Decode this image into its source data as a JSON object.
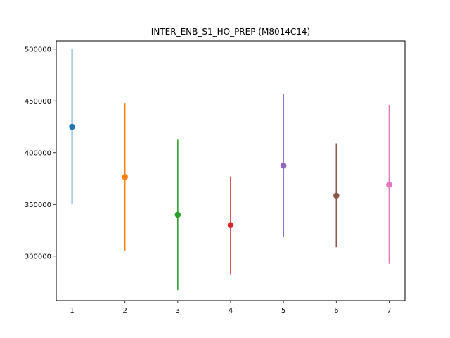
{
  "chart_data": {
    "type": "scatter",
    "title": "INTER_ENB_S1_HO_PREP (M8014C14)",
    "xlabel": "",
    "ylabel": "",
    "xlim": [
      0.7,
      7.3
    ],
    "ylim": [
      257000,
      508000
    ],
    "xticks": [
      1,
      2,
      3,
      4,
      5,
      6,
      7
    ],
    "yticks": [
      300000,
      350000,
      400000,
      450000,
      500000
    ],
    "grid": false,
    "points": [
      {
        "x": 1,
        "y": 425000,
        "low": 350000,
        "high": 500000,
        "color": "#1f77b4"
      },
      {
        "x": 2,
        "y": 376500,
        "low": 305500,
        "high": 448000,
        "color": "#ff7f0e"
      },
      {
        "x": 3,
        "y": 340000,
        "low": 267000,
        "high": 412500,
        "color": "#2ca02c"
      },
      {
        "x": 4,
        "y": 330000,
        "low": 282500,
        "high": 377000,
        "color": "#d62728"
      },
      {
        "x": 5,
        "y": 387500,
        "low": 318500,
        "high": 457000,
        "color": "#9467bd"
      },
      {
        "x": 6,
        "y": 358500,
        "low": 308500,
        "high": 409000,
        "color": "#8c564b"
      },
      {
        "x": 7,
        "y": 369000,
        "low": 292500,
        "high": 446000,
        "color": "#e377c2"
      }
    ]
  }
}
